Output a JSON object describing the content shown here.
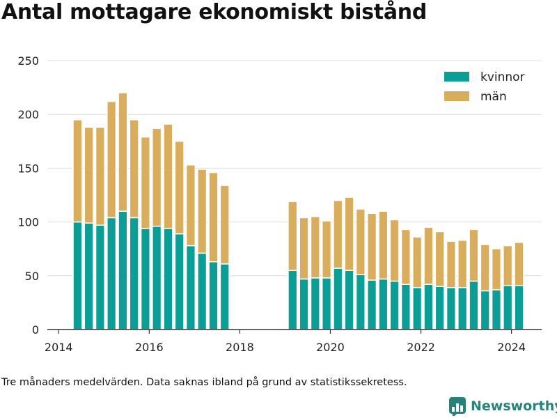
{
  "title": "Antal mottagare ekonomiskt bistånd",
  "caption": "Tre månaders medelvärden. Data saknas ibland på grund av statistikssekretess.",
  "brand": {
    "name": "Newsworthy",
    "icon": "bar-chart-logo-icon"
  },
  "colors": {
    "kvinnor": "#0a9e96",
    "man": "#d9ad5b",
    "grid": "#dddddd",
    "axis": "#333333"
  },
  "chart_data": {
    "type": "bar",
    "stacked": true,
    "legend": {
      "position": "top-right"
    },
    "grid": "horizontal",
    "ylim": [
      0,
      250
    ],
    "yticks": [
      0,
      50,
      100,
      150,
      200,
      250
    ],
    "xticks": [
      "2014",
      "2016",
      "2018",
      "2020",
      "2022",
      "2024"
    ],
    "xlim": [
      "2013-10",
      "2024-09"
    ],
    "x": [
      "2014-06",
      "2014-09",
      "2014-12",
      "2015-03",
      "2015-06",
      "2015-09",
      "2015-12",
      "2016-03",
      "2016-06",
      "2016-09",
      "2016-12",
      "2017-03",
      "2017-06",
      "2017-09",
      "2019-03",
      "2019-06",
      "2019-09",
      "2019-12",
      "2020-03",
      "2020-06",
      "2020-09",
      "2020-12",
      "2021-03",
      "2021-06",
      "2021-09",
      "2021-12",
      "2022-03",
      "2022-06",
      "2022-09",
      "2022-12",
      "2023-03",
      "2023-06",
      "2023-09",
      "2023-12",
      "2024-03"
    ],
    "series": [
      {
        "name": "kvinnor",
        "values": [
          100,
          99,
          97,
          104,
          110,
          104,
          94,
          96,
          94,
          89,
          78,
          71,
          63,
          61,
          55,
          47,
          48,
          48,
          57,
          55,
          51,
          46,
          47,
          45,
          42,
          39,
          42,
          40,
          39,
          39,
          45,
          36,
          37,
          41,
          41
        ]
      },
      {
        "name": "män",
        "values": [
          95,
          89,
          91,
          108,
          110,
          91,
          85,
          91,
          97,
          86,
          75,
          78,
          83,
          73,
          64,
          57,
          57,
          53,
          63,
          68,
          61,
          62,
          63,
          57,
          51,
          47,
          53,
          51,
          43,
          44,
          48,
          43,
          38,
          37,
          40
        ]
      }
    ]
  }
}
